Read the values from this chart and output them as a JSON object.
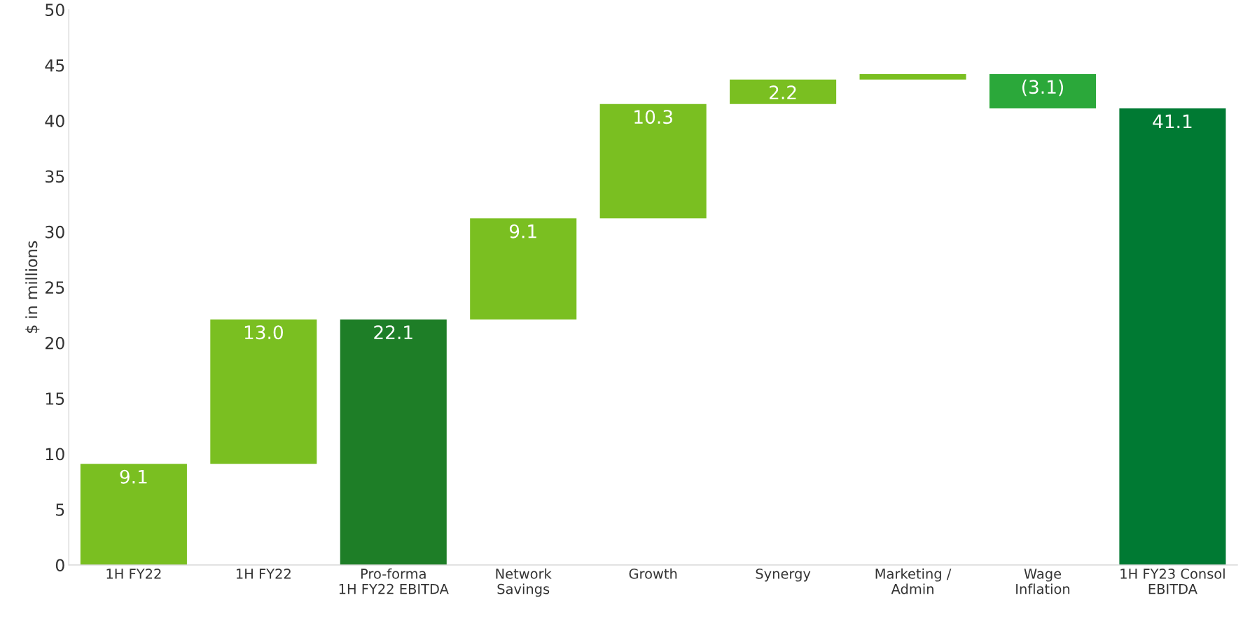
{
  "chart_data": {
    "type": "bar",
    "ylabel": "$ in millions",
    "categories": [
      "1H FY22",
      "1H FY22",
      "Pro-forma\n1H FY22 EBITDA",
      "Network\nSavings",
      "Growth",
      "Synergy",
      "Marketing /\nAdmin",
      "Wage\nInflation",
      "1H FY23 Consol\nEBITDA"
    ],
    "values": [
      9.1,
      13.0,
      22.1,
      9.1,
      10.3,
      2.2,
      0.5,
      -3.1,
      41.1
    ],
    "base": [
      0,
      9.1,
      0,
      22.1,
      31.2,
      41.5,
      43.7,
      44.2,
      0
    ],
    "colors": [
      "#7abf21",
      "#7abf21",
      "#1e7e27",
      "#7abf21",
      "#7abf21",
      "#7abf21",
      "#7abf21",
      "#2ba83a",
      "#007a33"
    ],
    "value_labels": [
      "9.1",
      "13.0",
      "22.1",
      "9.1",
      "10.3",
      "2.2",
      null,
      "(3.1)",
      "41.1"
    ],
    "ylim": [
      0,
      50
    ],
    "yticks": [
      0,
      5,
      10,
      15,
      20,
      25,
      30,
      35,
      40,
      45,
      50
    ]
  }
}
